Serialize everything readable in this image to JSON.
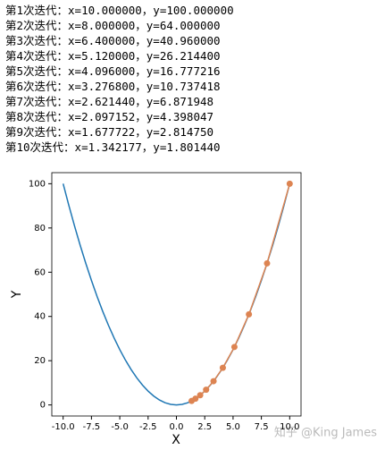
{
  "lines": [
    "第1次迭代：x=10.000000，y=100.000000",
    "第2次迭代：x=8.000000，y=64.000000",
    "第3次迭代：x=6.400000，y=40.960000",
    "第4次迭代：x=5.120000，y=26.214400",
    "第5次迭代：x=4.096000，y=16.777216",
    "第6次迭代：x=3.276800，y=10.737418",
    "第7次迭代：x=2.621440，y=6.871948",
    "第8次迭代：x=2.097152，y=4.398047",
    "第9次迭代：x=1.677722，y=2.814750",
    "第10次迭代：x=1.342177，y=1.801440"
  ],
  "watermark": "知乎 @King James",
  "chart_data": {
    "type": "line",
    "x_label": "X",
    "y_label": "Y",
    "xlim": [
      -11,
      11
    ],
    "ylim": [
      -5,
      105
    ],
    "xticks": [
      {
        "value": -10,
        "label": "-10.0"
      },
      {
        "value": -7.5,
        "label": "-7.5"
      },
      {
        "value": -5,
        "label": "-5.0"
      },
      {
        "value": -2.5,
        "label": "-2.5"
      },
      {
        "value": 0,
        "label": "0.0"
      },
      {
        "value": 2.5,
        "label": "2.5"
      },
      {
        "value": 5,
        "label": "5.0"
      },
      {
        "value": 7.5,
        "label": "7.5"
      },
      {
        "value": 10,
        "label": "10.0"
      }
    ],
    "yticks": [
      0,
      20,
      40,
      60,
      80,
      100
    ],
    "series": [
      {
        "color": "#1f77b4",
        "x": [
          -10,
          -9.5,
          -9,
          -8.5,
          -8,
          -7.5,
          -7,
          -6.5,
          -6,
          -5.5,
          -5,
          -4.5,
          -4,
          -3.5,
          -3,
          -2.5,
          -2,
          -1.5,
          -1,
          -0.5,
          0,
          0.5,
          1,
          1.5,
          2,
          2.5,
          3,
          3.5,
          4,
          4.5,
          5,
          5.5,
          6,
          6.5,
          7,
          7.5,
          8,
          8.5,
          9,
          9.5,
          10
        ],
        "values": [
          100,
          90.25,
          81,
          72.25,
          64,
          56.25,
          49,
          42.25,
          36,
          30.25,
          25,
          20.25,
          16,
          12.25,
          9,
          6.25,
          4,
          2.25,
          1,
          0.25,
          0,
          0.25,
          1,
          2.25,
          4,
          6.25,
          9,
          12.25,
          16,
          20.25,
          25,
          30.25,
          36,
          42.25,
          49,
          56.25,
          64,
          72.25,
          81,
          90.25,
          100
        ]
      },
      {
        "color": "#dd8452",
        "marker": "o",
        "x": [
          10,
          8,
          6.4,
          5.12,
          4.096,
          3.2768,
          2.62144,
          2.097152,
          1.677722,
          1.342177
        ],
        "values": [
          100,
          64,
          40.96,
          26.2144,
          16.777216,
          10.737418,
          6.871948,
          4.398047,
          2.81475,
          1.80144
        ]
      }
    ]
  }
}
